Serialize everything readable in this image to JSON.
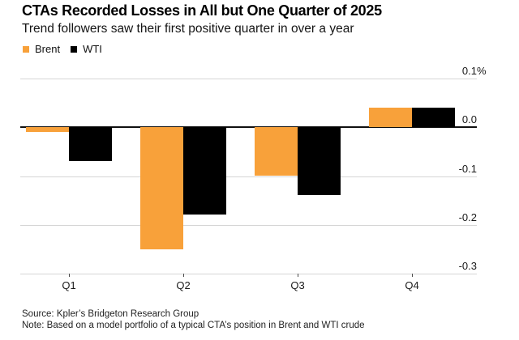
{
  "header": {
    "title": "CTAs Recorded Losses in All but One Quarter of 2025",
    "subtitle": "Trend followers saw their first positive quarter in over a year"
  },
  "footer": {
    "source": "Source: Kpler’s Bridgeton Research Group",
    "note": "Note: Based on a model portfolio of a typical CTA’s position in Brent and WTI crude"
  },
  "colors": {
    "brent_orange": "#F8A13A",
    "wti_black": "#000000",
    "gridline": "#d6d6d6",
    "zero_line": "#101010",
    "background": "#ffffff"
  },
  "chart_data": {
    "type": "bar",
    "title": "CTAs Recorded Losses in All but One Quarter of 2025",
    "subtitle": "Trend followers saw their first positive quarter in over a year",
    "categories": [
      "Q1",
      "Q2",
      "Q3",
      "Q4"
    ],
    "series": [
      {
        "name": "Brent",
        "color": "#F8A13A",
        "values": [
          -0.01,
          -0.25,
          -0.1,
          0.04
        ]
      },
      {
        "name": "WTI",
        "color": "#000000",
        "values": [
          -0.07,
          -0.18,
          -0.14,
          0.04
        ]
      }
    ],
    "xlabel": "",
    "ylabel": "",
    "ylim": [
      -0.3,
      0.1
    ],
    "yticks": [
      {
        "value": 0.1,
        "label": "0.1",
        "suffix": "%"
      },
      {
        "value": 0.0,
        "label": "0.0",
        "suffix": ""
      },
      {
        "value": -0.1,
        "label": "-0.1",
        "suffix": ""
      },
      {
        "value": -0.2,
        "label": "-0.2",
        "suffix": ""
      },
      {
        "value": -0.3,
        "label": "-0.3",
        "suffix": ""
      }
    ],
    "grid": true,
    "legend_position": "top-left"
  }
}
